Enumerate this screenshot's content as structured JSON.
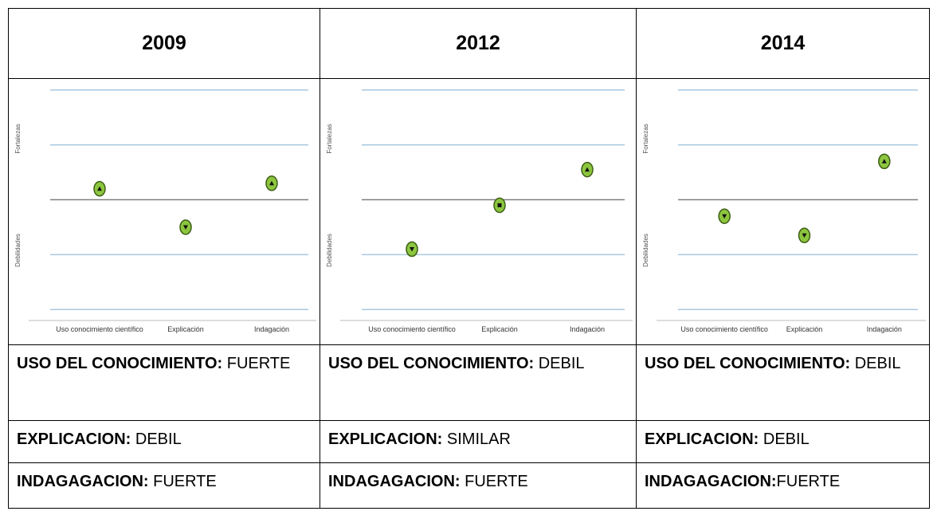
{
  "table": {
    "headers": [
      "2009",
      "2012",
      "2014"
    ],
    "rows": [
      [
        {
          "label": "USO DEL CONOCIMIENTO:",
          "value": " FUERTE"
        },
        {
          "label": "USO DEL CONOCIMIENTO:",
          "value": " DEBIL"
        },
        {
          "label": "USO DEL CONOCIMIENTO:",
          "value": " DEBIL"
        }
      ],
      [
        {
          "label": "EXPLICACION:",
          "value": " DEBIL"
        },
        {
          "label": "EXPLICACION:",
          "value": " SIMILAR"
        },
        {
          "label": "EXPLICACION:",
          "value": " DEBIL"
        }
      ],
      [
        {
          "label": "INDAGAGACION:",
          "value": " FUERTE"
        },
        {
          "label": "INDAGAGACION:",
          "value": " FUERTE"
        },
        {
          "label": "INDAGAGACION:",
          "value": "FUERTE"
        }
      ]
    ]
  },
  "chart_data": [
    {
      "type": "scatter",
      "categories": [
        "Uso conocimiento científico",
        "Explicación",
        "Indagación"
      ],
      "values": [
        0.2,
        -0.5,
        0.3
      ],
      "markers": [
        "up",
        "down",
        "up"
      ],
      "y_labels": [
        "Fortalezas",
        "Debilidades"
      ],
      "ylim": [
        -2.2,
        2.1
      ],
      "yticks": [
        -2,
        -1,
        0,
        1,
        2
      ],
      "grid_color": "#a9c8e0",
      "zero_color": "#7f7f7f",
      "color": "#8cc63f"
    },
    {
      "type": "scatter",
      "categories": [
        "Uso conocimiento científico",
        "Explicación",
        "Indagación"
      ],
      "values": [
        -0.9,
        -0.1,
        0.55
      ],
      "markers": [
        "down",
        "square",
        "up"
      ],
      "y_labels": [
        "Fortalezas",
        "Debilidades"
      ],
      "ylim": [
        -2.2,
        2.1
      ],
      "yticks": [
        -2,
        -1,
        0,
        1,
        2
      ],
      "grid_color": "#a9c8e0",
      "zero_color": "#7f7f7f",
      "color": "#8cc63f"
    },
    {
      "type": "scatter",
      "categories": [
        "Uso conocimiento científico",
        "Explicación",
        "Indagación"
      ],
      "values": [
        -0.3,
        -0.65,
        0.7
      ],
      "markers": [
        "down",
        "down",
        "up"
      ],
      "y_labels": [
        "Fortalezas",
        "Debilidades"
      ],
      "ylim": [
        -2.2,
        2.1
      ],
      "yticks": [
        -2,
        -1,
        0,
        1,
        2
      ],
      "grid_color": "#a9c8e0",
      "zero_color": "#7f7f7f",
      "color": "#8cc63f"
    }
  ]
}
